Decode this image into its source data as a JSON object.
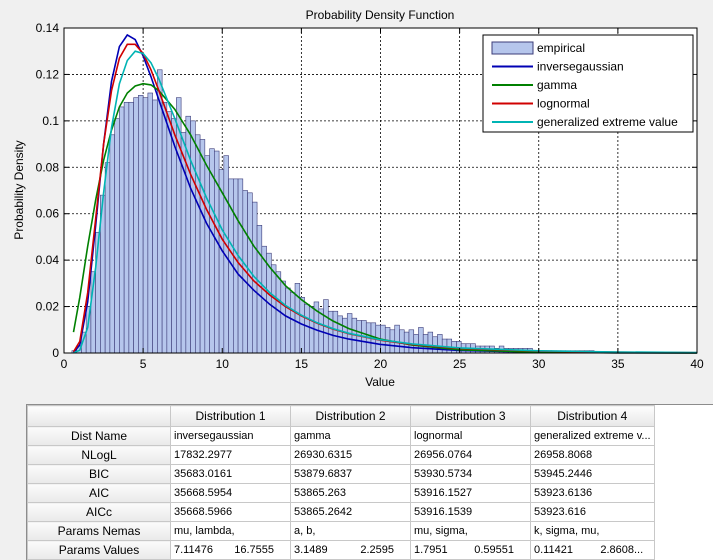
{
  "chart_data": {
    "type": "bar",
    "title": "Probability Density Function",
    "xlabel": "Value",
    "ylabel": "Probability Density",
    "xlim": [
      0,
      40
    ],
    "ylim": [
      0,
      0.14
    ],
    "xticks": [
      "0",
      "5",
      "10",
      "15",
      "20",
      "25",
      "30",
      "35",
      "40"
    ],
    "yticks": [
      "0",
      "0.02",
      "0.04",
      "0.06",
      "0.08",
      "0.1",
      "0.12",
      "0.14"
    ],
    "grid": true,
    "legend_position": "top-right",
    "histogram": {
      "name": "empirical",
      "color": "#b6c6ec",
      "edge": "#3c3c78",
      "bin_start": 0.5,
      "bin_width": 0.3,
      "values": [
        0.001,
        0.003,
        0.009,
        0.02,
        0.035,
        0.052,
        0.068,
        0.082,
        0.094,
        0.101,
        0.106,
        0.108,
        0.108,
        0.11,
        0.111,
        0.11,
        0.112,
        0.109,
        0.122,
        0.108,
        0.104,
        0.101,
        0.11,
        0.095,
        0.102,
        0.1,
        0.094,
        0.092,
        0.085,
        0.088,
        0.087,
        0.079,
        0.085,
        0.075,
        0.075,
        0.075,
        0.07,
        0.069,
        0.065,
        0.055,
        0.046,
        0.043,
        0.038,
        0.035,
        0.031,
        0.028,
        0.026,
        0.03,
        0.024,
        0.021,
        0.02,
        0.022,
        0.019,
        0.023,
        0.018,
        0.018,
        0.016,
        0.015,
        0.017,
        0.015,
        0.014,
        0.014,
        0.013,
        0.013,
        0.012,
        0.012,
        0.011,
        0.01,
        0.012,
        0.01,
        0.009,
        0.01,
        0.008,
        0.011,
        0.008,
        0.009,
        0.007,
        0.008,
        0.006,
        0.006,
        0.005,
        0.005,
        0.004,
        0.004,
        0.004,
        0.003,
        0.003,
        0.003,
        0.003,
        0.002,
        0.003,
        0.002,
        0.002,
        0.002,
        0.002,
        0.002,
        0.002,
        0.001,
        0.001,
        0.001,
        0.001,
        0.001,
        0.001,
        0.001,
        0.001,
        0.001,
        0.001,
        0.001,
        0.001,
        0.001
      ]
    },
    "series": [
      {
        "name": "inversegaussian",
        "color": "#0000b4",
        "x": [
          0.6,
          1,
          1.5,
          2,
          2.5,
          3,
          3.5,
          4,
          4.5,
          5,
          5.5,
          6,
          7,
          8,
          9,
          10,
          11,
          12,
          13,
          14,
          15,
          16,
          17,
          18,
          20,
          22,
          25,
          30,
          35,
          40
        ],
        "y": [
          0.0002,
          0.0035,
          0.022,
          0.055,
          0.09,
          0.117,
          0.132,
          0.137,
          0.135,
          0.128,
          0.119,
          0.109,
          0.089,
          0.071,
          0.056,
          0.044,
          0.034,
          0.027,
          0.021,
          0.016,
          0.0125,
          0.0098,
          0.0076,
          0.006,
          0.0037,
          0.0023,
          0.0011,
          0.00035,
          0.0001,
          3e-05
        ]
      },
      {
        "name": "gamma",
        "color": "#008000",
        "x": [
          0.6,
          1,
          1.5,
          2,
          2.5,
          3,
          3.5,
          4,
          4.5,
          5,
          5.5,
          6,
          7,
          8,
          9,
          10,
          11,
          12,
          13,
          14,
          15,
          16,
          17,
          18,
          20,
          22,
          25,
          30,
          35,
          40
        ],
        "y": [
          0.009,
          0.024,
          0.046,
          0.066,
          0.083,
          0.096,
          0.106,
          0.112,
          0.115,
          0.116,
          0.1155,
          0.113,
          0.105,
          0.094,
          0.081,
          0.069,
          0.057,
          0.046,
          0.037,
          0.029,
          0.023,
          0.018,
          0.0138,
          0.0105,
          0.006,
          0.0034,
          0.0014,
          0.0003,
          7e-05,
          2e-05
        ]
      },
      {
        "name": "lognormal",
        "color": "#d00000",
        "x": [
          0.6,
          1,
          1.5,
          2,
          2.5,
          3,
          3.5,
          4,
          4.5,
          5,
          5.5,
          6,
          7,
          8,
          9,
          10,
          11,
          12,
          13,
          14,
          15,
          16,
          17,
          18,
          20,
          22,
          25,
          30,
          35,
          40
        ],
        "y": [
          0.0005,
          0.005,
          0.026,
          0.058,
          0.09,
          0.113,
          0.127,
          0.133,
          0.133,
          0.129,
          0.122,
          0.113,
          0.094,
          0.077,
          0.062,
          0.049,
          0.039,
          0.031,
          0.025,
          0.02,
          0.016,
          0.0128,
          0.0103,
          0.0083,
          0.0055,
          0.0037,
          0.002,
          0.0008,
          0.00035,
          0.00015
        ]
      },
      {
        "name": "generalized extreme value",
        "color": "#00b4b4",
        "x": [
          0.6,
          1,
          1.5,
          2,
          2.5,
          3,
          3.5,
          4,
          4.5,
          5,
          5.5,
          6,
          7,
          8,
          9,
          10,
          11,
          12,
          13,
          14,
          15,
          16,
          17,
          18,
          20,
          22,
          25,
          30,
          35,
          40
        ],
        "y": [
          5e-05,
          0.0012,
          0.011,
          0.037,
          0.069,
          0.097,
          0.116,
          0.126,
          0.13,
          0.129,
          0.125,
          0.118,
          0.101,
          0.083,
          0.067,
          0.053,
          0.042,
          0.033,
          0.026,
          0.0205,
          0.0163,
          0.013,
          0.0105,
          0.0085,
          0.0057,
          0.0039,
          0.0022,
          0.00095,
          0.00045,
          0.00023
        ]
      }
    ]
  },
  "table": {
    "columns": [
      "Distribution 1",
      "Distribution 2",
      "Distribution 3",
      "Distribution 4"
    ],
    "rows": [
      {
        "label": "Dist Name",
        "cells": [
          [
            "inversegaussian"
          ],
          [
            "gamma"
          ],
          [
            "lognormal"
          ],
          [
            "generalized extreme v..."
          ]
        ]
      },
      {
        "label": "NLogL",
        "cells": [
          [
            "17832.2977"
          ],
          [
            "26930.6315"
          ],
          [
            "26956.0764"
          ],
          [
            "26958.8068"
          ]
        ]
      },
      {
        "label": "BIC",
        "cells": [
          [
            "35683.0161"
          ],
          [
            "53879.6837"
          ],
          [
            "53930.5734"
          ],
          [
            "53945.2446"
          ]
        ]
      },
      {
        "label": "AIC",
        "cells": [
          [
            "35668.5954"
          ],
          [
            "53865.263"
          ],
          [
            "53916.1527"
          ],
          [
            "53923.6136"
          ]
        ]
      },
      {
        "label": "AICc",
        "cells": [
          [
            "35668.5966"
          ],
          [
            "53865.2642"
          ],
          [
            "53916.1539"
          ],
          [
            "53923.616"
          ]
        ]
      },
      {
        "label": "Params Nemas",
        "cells": [
          [
            "mu, lambda,"
          ],
          [
            "a, b,"
          ],
          [
            "mu, sigma,"
          ],
          [
            "k, sigma, mu,"
          ]
        ]
      },
      {
        "label": "Params Values",
        "cells": [
          [
            "7.11476",
            "16.7555"
          ],
          [
            "3.1489",
            "2.2595"
          ],
          [
            "1.7951",
            "0.59551"
          ],
          [
            "0.11421",
            "2.8608",
            "..."
          ]
        ]
      }
    ]
  }
}
